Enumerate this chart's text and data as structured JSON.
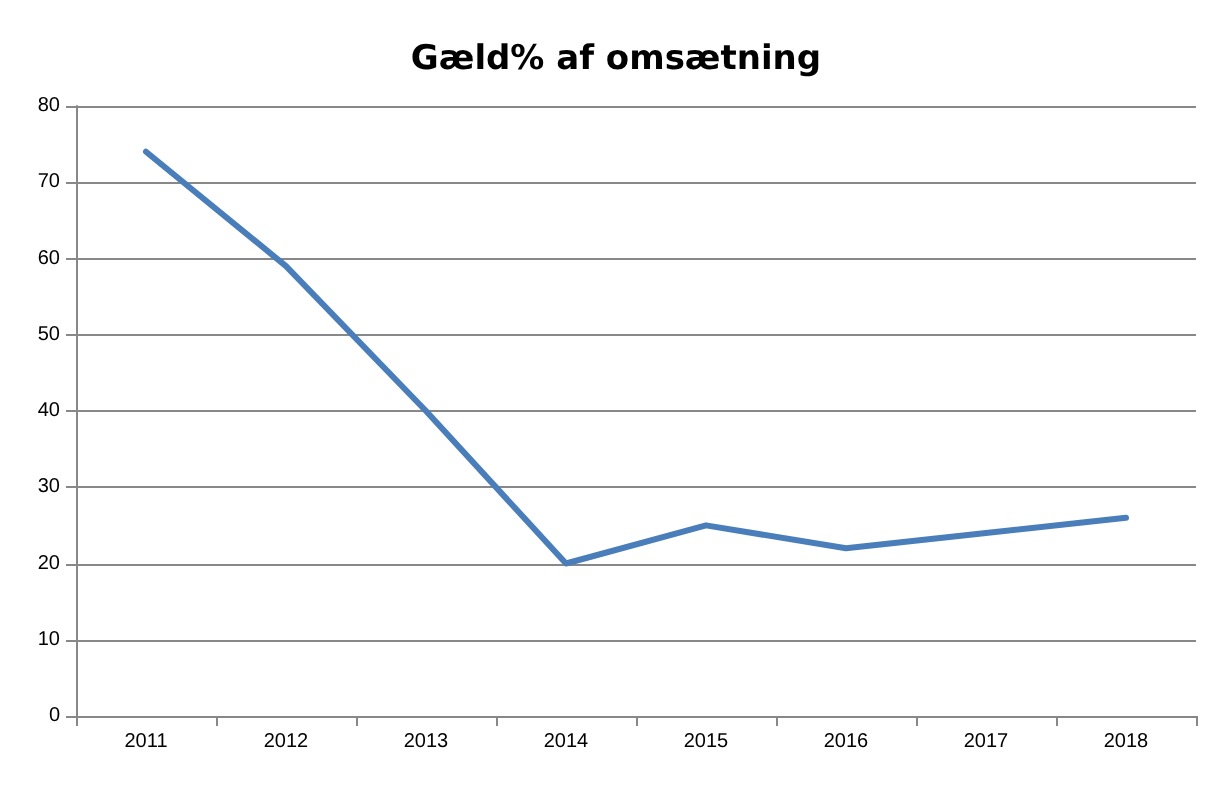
{
  "chart_data": {
    "type": "line",
    "title": "Gæld% af omsætning",
    "categories": [
      "2011",
      "2012",
      "2013",
      "2014",
      "2015",
      "2016",
      "2017",
      "2018"
    ],
    "series": [
      {
        "color": "#4a7ebb",
        "values": [
          74,
          59,
          40,
          20,
          25,
          22,
          24,
          26
        ]
      }
    ],
    "ylim": [
      0,
      80
    ],
    "yticks": [
      0,
      10,
      20,
      30,
      40,
      50,
      60,
      70,
      80
    ],
    "grid": "y",
    "marker": "none",
    "line_style": "solid"
  }
}
